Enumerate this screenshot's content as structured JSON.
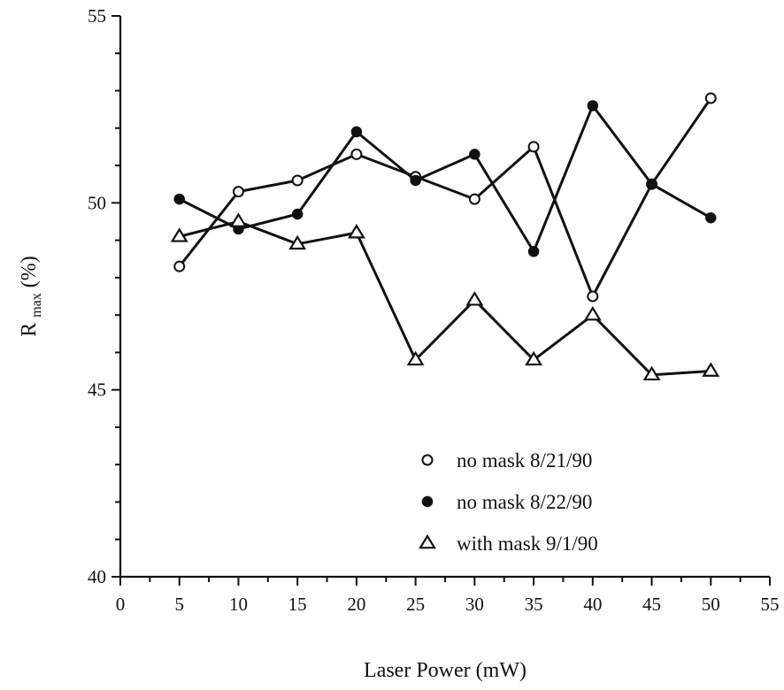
{
  "chart_data": {
    "type": "line",
    "title": "",
    "xlabel": "Laser Power (mW)",
    "ylabel_main": "R",
    "ylabel_sub": "max",
    "ylabel_suffix": " (%)",
    "xlim": [
      0,
      55
    ],
    "ylim": [
      40,
      55
    ],
    "x_ticks": [
      "0",
      "5",
      "10",
      "15",
      "20",
      "25",
      "30",
      "35",
      "40",
      "45",
      "50",
      "55"
    ],
    "y_ticks": [
      "40",
      "45",
      "50",
      "55"
    ],
    "grid": false,
    "legend_position": "bottom-right",
    "series": [
      {
        "name": "no mask 8/21/90",
        "marker": "open-circle",
        "x": [
          5,
          10,
          15,
          20,
          25,
          30,
          35,
          40,
          45,
          50
        ],
        "y": [
          48.3,
          50.3,
          50.6,
          51.3,
          50.7,
          50.1,
          51.5,
          47.5,
          50.5,
          52.8
        ]
      },
      {
        "name": "no mask 8/22/90",
        "marker": "filled-circle",
        "x": [
          5,
          10,
          15,
          20,
          25,
          30,
          35,
          40,
          45,
          50
        ],
        "y": [
          50.1,
          49.3,
          49.7,
          51.9,
          50.6,
          51.3,
          48.7,
          52.6,
          50.5,
          49.6
        ]
      },
      {
        "name": "with mask 9/1/90",
        "marker": "open-triangle",
        "x": [
          5,
          10,
          15,
          20,
          25,
          30,
          35,
          40,
          45,
          50
        ],
        "y": [
          49.1,
          49.5,
          48.9,
          49.2,
          45.8,
          47.4,
          45.8,
          47.0,
          45.4,
          45.5
        ]
      }
    ]
  }
}
